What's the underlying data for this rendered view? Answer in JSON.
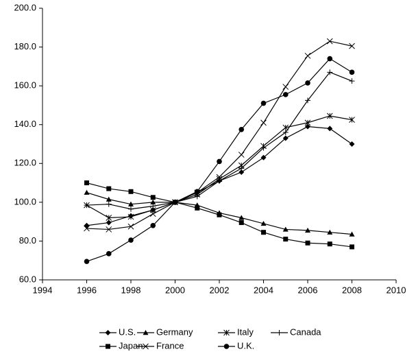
{
  "chart_data": {
    "type": "line",
    "x": [
      1996,
      1997,
      1998,
      1999,
      2000,
      2001,
      2002,
      2003,
      2004,
      2005,
      2006,
      2007,
      2008
    ],
    "xlim": [
      1994,
      2010
    ],
    "xticks": [
      1994,
      1996,
      1998,
      2000,
      2002,
      2004,
      2006,
      2008,
      2010
    ],
    "ylim": [
      60,
      200
    ],
    "yticks": [
      {
        "value": 60,
        "label": "60.0"
      },
      {
        "value": 80,
        "label": "80.0"
      },
      {
        "value": 100,
        "label": "100.0"
      },
      {
        "value": 120,
        "label": "120.0"
      },
      {
        "value": 140,
        "label": "140.0"
      },
      {
        "value": 160,
        "label": "160.0"
      },
      {
        "value": 180,
        "label": "180.0"
      },
      {
        "value": 200,
        "label": "200.0"
      }
    ],
    "grid": false,
    "legend": "bottom",
    "series": [
      {
        "name": "U.S.",
        "color": "#000000",
        "marker": "diamond",
        "values": [
          88,
          89.5,
          93,
          96,
          100,
          105,
          111,
          115.5,
          123,
          133,
          139,
          138,
          130
        ]
      },
      {
        "name": "Germany",
        "color": "#000000",
        "marker": "triangle",
        "values": [
          105,
          101.5,
          99,
          100,
          100,
          98.5,
          94.5,
          92,
          89,
          86,
          85.5,
          84.5,
          83.5
        ]
      },
      {
        "name": "Italy",
        "color": "#000000",
        "marker": "asterisk",
        "values": [
          98.5,
          92,
          92.5,
          96,
          100,
          104,
          112,
          119,
          129,
          138.5,
          141,
          144.5,
          142.5
        ]
      },
      {
        "name": "Canada",
        "color": "#000000",
        "marker": "plus",
        "values": [
          98.5,
          99,
          96.5,
          98,
          100,
          103,
          111,
          117.5,
          128,
          136,
          152.5,
          167,
          162.5
        ]
      },
      {
        "name": "Japan",
        "color": "#000000",
        "marker": "square",
        "values": [
          110,
          107,
          105.5,
          102.5,
          100,
          97,
          93.5,
          89.5,
          84.5,
          81,
          79,
          78.5,
          77
        ]
      },
      {
        "name": "France",
        "color": "#000000",
        "marker": "x",
        "values": [
          86.5,
          86,
          87.5,
          94,
          100,
          105,
          113,
          124.5,
          141,
          159.5,
          175.5,
          183,
          180.5
        ]
      },
      {
        "name": "U.K.",
        "color": "#000000",
        "marker": "circle",
        "values": [
          69.5,
          73.5,
          80.5,
          88,
          100,
          105.5,
          121,
          137.5,
          151,
          155.5,
          161.5,
          174,
          167
        ]
      }
    ]
  }
}
